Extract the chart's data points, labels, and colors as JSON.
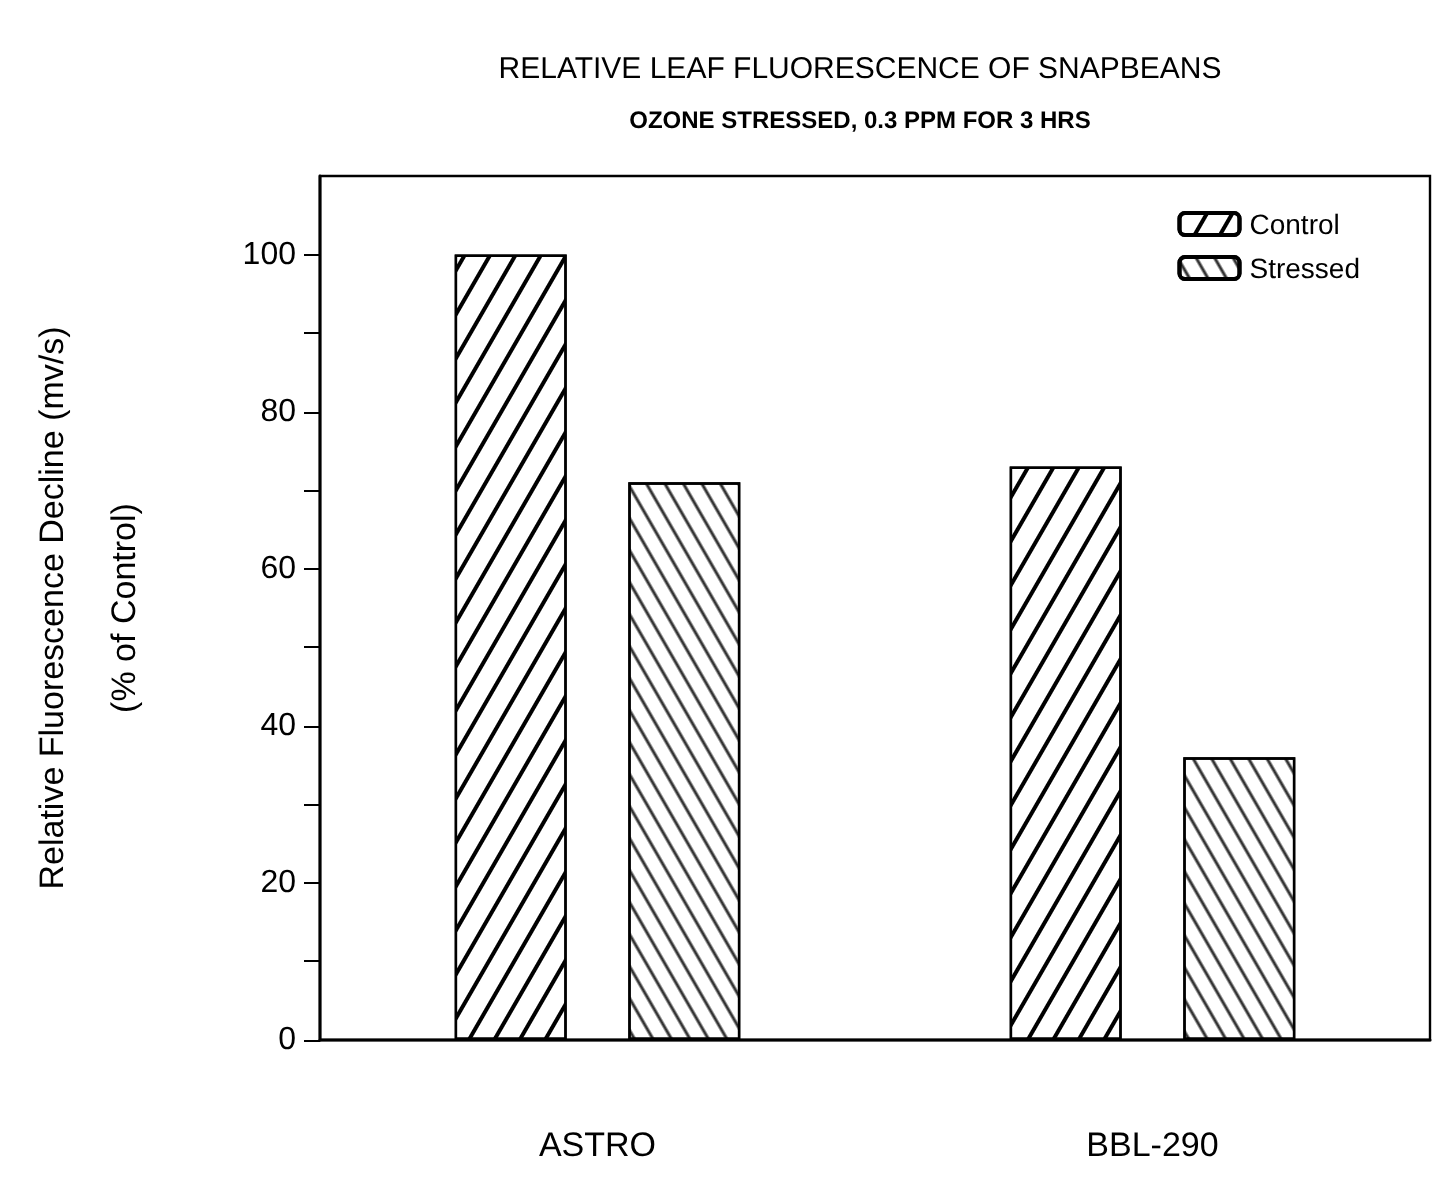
{
  "chart_data": {
    "type": "bar",
    "title": "RELATIVE LEAF FLUORESCENCE OF SNAPBEANS",
    "subtitle": "OZONE STRESSED, 0.3 PPM FOR 3 HRS",
    "ylabel": "Relative Fluorescence Decline (mv/s)\n(% of Control)",
    "categories": [
      "ASTRO",
      "BBL-290"
    ],
    "series": [
      {
        "name": "Control",
        "color": "#000000",
        "values": [
          100,
          73
        ]
      },
      {
        "name": "Stressed",
        "color": "#000000",
        "values": [
          71,
          36
        ]
      }
    ],
    "ylim": [
      0,
      110
    ],
    "yticks": [
      0,
      {
        "value": 10,
        "label": null
      },
      20,
      {
        "value": 30,
        "label": null
      },
      40,
      {
        "value": 50,
        "label": null
      },
      60,
      {
        "value": 70,
        "label": null
      },
      80,
      {
        "value": 90,
        "label": null
      },
      100
    ],
    "legend": "top right",
    "grid": false
  }
}
